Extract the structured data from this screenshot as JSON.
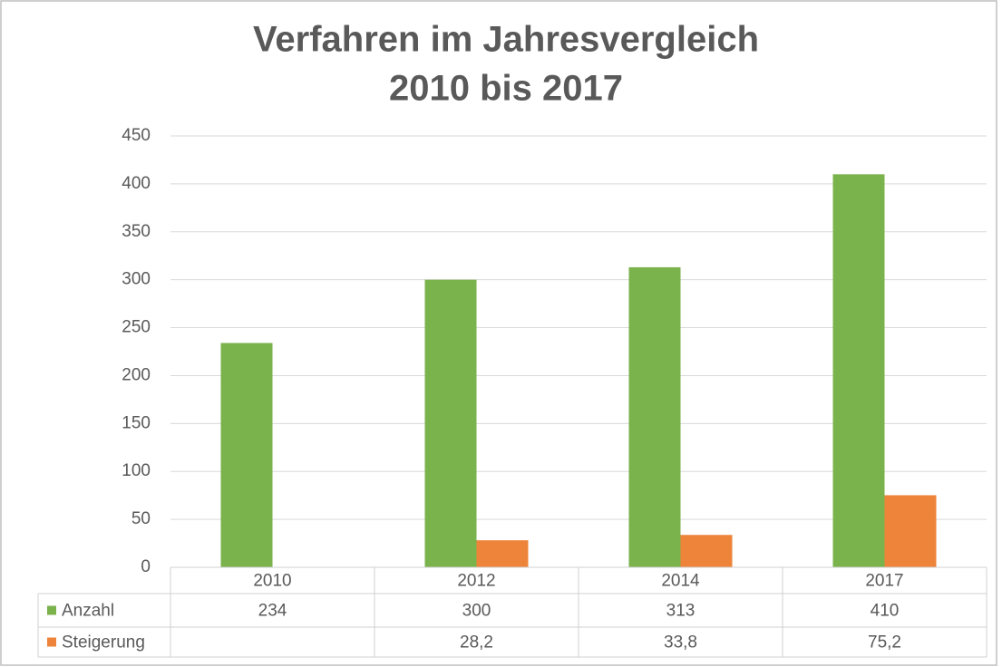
{
  "chart_data": {
    "type": "bar",
    "title": [
      "Verfahren im Jahresvergleich",
      "2010 bis 2017"
    ],
    "categories": [
      "2010",
      "2012",
      "2014",
      "2017"
    ],
    "series": [
      {
        "name": "Anzahl",
        "color": "#7ab24c",
        "values": [
          234,
          300,
          313,
          410
        ]
      },
      {
        "name": "Steigerung",
        "color": "#ee843a",
        "values": [
          null,
          28.2,
          33.8,
          75.2
        ],
        "value_labels": [
          null,
          "28,2",
          "33,8",
          "75,2"
        ]
      }
    ],
    "ylim": [
      0,
      450
    ],
    "yticks": [
      0,
      50,
      100,
      150,
      200,
      250,
      300,
      350,
      400,
      450
    ],
    "grid": true,
    "data_table": true
  }
}
